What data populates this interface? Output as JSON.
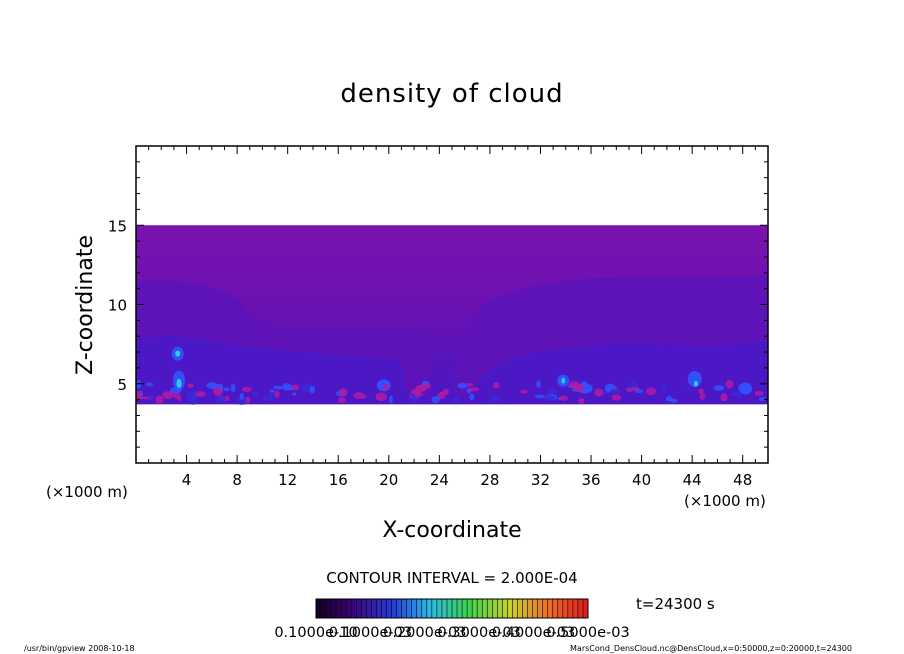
{
  "chart_data": {
    "type": "heatmap",
    "title": "density of cloud",
    "xlabel": "X-coordinate",
    "ylabel": "Z-coordinate",
    "x_unit_left": "(×1000 m)",
    "x_unit_right": "(×1000 m)",
    "xlim": [
      0,
      50
    ],
    "ylim": [
      0,
      20
    ],
    "xticks": [
      4,
      8,
      12,
      16,
      20,
      24,
      28,
      32,
      36,
      40,
      44,
      48
    ],
    "yticks": [
      5,
      10,
      15
    ],
    "field_extent": {
      "x": [
        0,
        50
      ],
      "z": [
        3.7,
        15
      ]
    },
    "contour_interval": "CONTOUR INTERVAL = 2.000E-04",
    "time_label": "t=24300 s",
    "colorbar_labels": [
      "0.1000e-10",
      "0.1000e-03",
      "0.2000e-03",
      "0.3000e-03",
      "0.4000e-03",
      "0.5000e-03"
    ],
    "colorbar_min": 0.0,
    "colorbar_max": 0.0005,
    "colors": {
      "upper_band": "#7711b0",
      "mid_band": "#5c11b8",
      "low_band": "#4a17c4",
      "hot_blue": "#2f55ff",
      "hot_cyan": "#27d8e8",
      "hot_magenta": "#b41aa2"
    },
    "footer_left": "/usr/bin/gpview   2008-10-18",
    "footer_right": "MarsCond_DensCloud.nc@DensCloud,x=0:50000,z=0:20000,t=24300"
  }
}
